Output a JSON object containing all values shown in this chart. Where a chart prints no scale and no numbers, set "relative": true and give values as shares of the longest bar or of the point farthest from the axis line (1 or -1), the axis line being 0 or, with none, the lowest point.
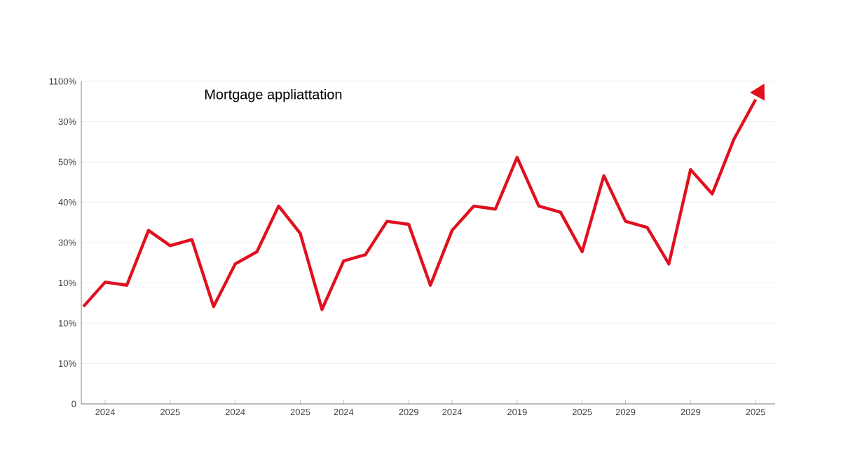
{
  "chart_data": {
    "type": "line",
    "title": "Mortgage appliattation",
    "relative": true,
    "categories": [
      null,
      "2024",
      null,
      null,
      "2025",
      null,
      null,
      "2024",
      null,
      null,
      "2025",
      null,
      "2024",
      null,
      null,
      "2029",
      null,
      "2024",
      null,
      null,
      "2019",
      null,
      null,
      "2025",
      null,
      "2029",
      null,
      null,
      "2029",
      null,
      null,
      "2025"
    ],
    "series": [
      {
        "color": "#e0101e",
        "values": [
          0.32,
          0.4,
          0.39,
          0.57,
          0.52,
          0.54,
          0.32,
          0.46,
          0.5,
          0.65,
          0.56,
          0.31,
          0.47,
          0.49,
          0.6,
          0.59,
          0.39,
          0.57,
          0.65,
          0.64,
          0.81,
          0.65,
          0.63,
          0.5,
          0.75,
          0.6,
          0.58,
          0.46,
          0.77,
          0.69,
          0.87,
          1
        ]
      }
    ],
    "annotations": [
      "1100%",
      "30%",
      "50%",
      "40%",
      "30%",
      "10%",
      "10%",
      "10%",
      "0"
    ],
    "grid": "y",
    "marker": "none",
    "line_style": "solid"
  }
}
